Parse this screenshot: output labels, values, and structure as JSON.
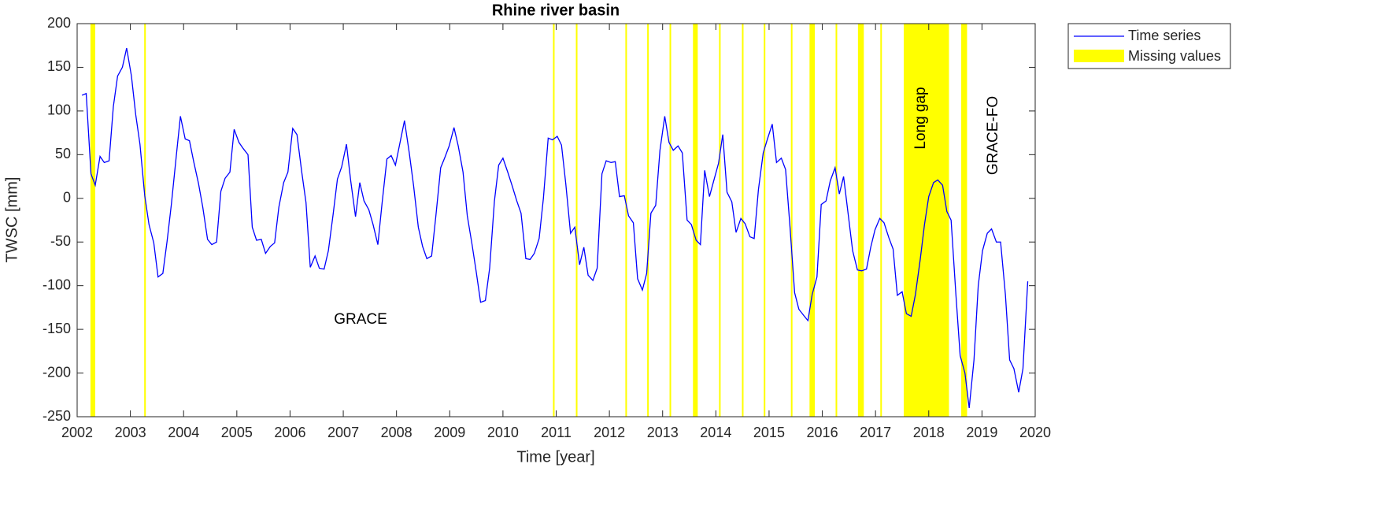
{
  "chart_data": {
    "type": "line",
    "title": "Rhine river basin",
    "x_label": "Time [year]",
    "y_label": "TWSC [mm]",
    "xlim": [
      2002,
      2020
    ],
    "xticks": [
      2002,
      2003,
      2004,
      2005,
      2006,
      2007,
      2008,
      2009,
      2010,
      2011,
      2012,
      2013,
      2014,
      2015,
      2016,
      2017,
      2018,
      2019,
      2020
    ],
    "ylim": [
      -250,
      200
    ],
    "yticks": [
      -250,
      -200,
      -150,
      -100,
      -50,
      0,
      50,
      100,
      150,
      200
    ],
    "legend": "outside-northeast",
    "x": [
      2002.09,
      2002.17,
      2002.26,
      2002.34,
      2002.43,
      2002.51,
      2002.6,
      2002.68,
      2002.76,
      2002.85,
      2002.93,
      2003.02,
      2003.1,
      2003.18,
      2003.27,
      2003.35,
      2003.44,
      2003.52,
      2003.61,
      2003.69,
      2003.77,
      2003.86,
      2003.94,
      2004.03,
      2004.11,
      2004.19,
      2004.28,
      2004.36,
      2004.45,
      2004.53,
      2004.62,
      2004.7,
      2004.78,
      2004.87,
      2004.95,
      2005.04,
      2005.12,
      2005.21,
      2005.29,
      2005.37,
      2005.46,
      2005.54,
      2005.63,
      2005.71,
      2005.79,
      2005.88,
      2005.96,
      2006.05,
      2006.13,
      2006.22,
      2006.3,
      2006.38,
      2006.47,
      2006.55,
      2006.64,
      2006.72,
      2006.81,
      2006.89,
      2006.97,
      2007.06,
      2007.14,
      2007.23,
      2007.31,
      2007.39,
      2007.48,
      2007.56,
      2007.65,
      2007.73,
      2007.82,
      2007.9,
      2007.98,
      2008.07,
      2008.15,
      2008.24,
      2008.32,
      2008.41,
      2008.49,
      2008.57,
      2008.66,
      2008.74,
      2008.83,
      2008.91,
      2008.99,
      2009.08,
      2009.16,
      2009.25,
      2009.33,
      2009.42,
      2009.5,
      2009.58,
      2009.67,
      2009.75,
      2009.84,
      2009.92,
      2010.0,
      2010.09,
      2010.17,
      2010.26,
      2010.34,
      2010.43,
      2010.51,
      2010.59,
      2010.68,
      2010.76,
      2010.85,
      2010.93,
      2011.02,
      2011.1,
      2011.18,
      2011.27,
      2011.35,
      2011.44,
      2011.52,
      2011.6,
      2011.69,
      2011.77,
      2011.86,
      2011.94,
      2012.03,
      2012.11,
      2012.19,
      2012.28,
      2012.36,
      2012.45,
      2012.53,
      2012.62,
      2012.7,
      2012.78,
      2012.87,
      2012.95,
      2013.04,
      2013.12,
      2013.2,
      2013.29,
      2013.37,
      2013.46,
      2013.54,
      2013.63,
      2013.71,
      2013.79,
      2013.88,
      2013.96,
      2014.05,
      2014.13,
      2014.21,
      2014.3,
      2014.38,
      2014.47,
      2014.55,
      2014.64,
      2014.72,
      2014.8,
      2014.89,
      2014.97,
      2015.06,
      2015.14,
      2015.23,
      2015.31,
      2015.39,
      2015.48,
      2015.56,
      2015.65,
      2015.73,
      2015.81,
      2015.9,
      2015.98,
      2016.07,
      2016.15,
      2016.24,
      2016.32,
      2016.4,
      2016.49,
      2016.57,
      2016.66,
      2016.74,
      2016.83,
      2016.91,
      2016.99,
      2017.08,
      2017.16,
      2017.25,
      2017.33,
      2017.41,
      2017.5,
      2017.58,
      2017.67,
      2017.75,
      2017.84,
      2017.92,
      2018.0,
      2018.09,
      2018.17,
      2018.26,
      2018.34,
      2018.42,
      2018.51,
      2018.59,
      2018.68,
      2018.76,
      2018.85,
      2018.93,
      2019.01,
      2019.1,
      2019.18,
      2019.27,
      2019.35,
      2019.44,
      2019.52,
      2019.6,
      2019.69,
      2019.77,
      2019.86
    ],
    "series": [
      {
        "name": "Time series",
        "color": "#0000ff",
        "values": [
          118,
          120,
          28,
          15,
          48,
          41,
          43,
          105,
          140,
          150,
          172,
          140,
          96,
          62,
          3,
          -30,
          -51,
          -90,
          -86,
          -49,
          -7,
          47,
          94,
          68,
          66,
          42,
          17,
          -10,
          -47,
          -53,
          -50,
          8,
          23,
          30,
          79,
          64,
          57,
          50,
          -33,
          -48,
          -47,
          -63,
          -55,
          -51,
          -10,
          18,
          30,
          80,
          73,
          30,
          -5,
          -79,
          -66,
          -80,
          -81,
          -60,
          -18,
          22,
          36,
          62,
          20,
          -21,
          18,
          -3,
          -13,
          -30,
          -53,
          -5,
          45,
          49,
          38,
          65,
          89,
          52,
          15,
          -33,
          -55,
          -69,
          -66,
          -20,
          35,
          47,
          60,
          81,
          60,
          30,
          -20,
          -53,
          -85,
          -119,
          -117,
          -80,
          -3,
          38,
          46,
          30,
          15,
          -3,
          -17,
          -69,
          -70,
          -63,
          -46,
          0,
          69,
          67,
          71,
          61,
          17,
          -40,
          -33,
          -76,
          -56,
          -88,
          -94,
          -80,
          28,
          43,
          41,
          42,
          2,
          3,
          -20,
          -28,
          -92,
          -105,
          -86,
          -17,
          -8,
          55,
          94,
          64,
          55,
          60,
          52,
          -25,
          -30,
          -48,
          -53,
          32,
          2,
          20,
          40,
          73,
          7,
          -4,
          -39,
          -23,
          -29,
          -44,
          -46,
          10,
          52,
          68,
          85,
          41,
          46,
          33,
          -30,
          -108,
          -127,
          -134,
          -140,
          -110,
          -90,
          -7,
          -3,
          20,
          35,
          5,
          25,
          -20,
          -60,
          -82,
          -83,
          -81,
          -56,
          -36,
          -23,
          -28,
          -45,
          -58,
          -111,
          -107,
          -132,
          -135,
          -110,
          -70,
          -30,
          2,
          18,
          21,
          15,
          -15,
          -25,
          -110,
          -180,
          -200,
          -240,
          -185,
          -100,
          -60,
          -40,
          -35,
          -50,
          -50,
          -110,
          -185,
          -195,
          -222,
          -195,
          -95
        ]
      }
    ],
    "missing_values": {
      "name": "Missing values",
      "color": "#ffff00",
      "ranges": [
        [
          2002.25,
          2002.34
        ],
        [
          2003.26,
          2003.29
        ],
        [
          2010.94,
          2010.97
        ],
        [
          2011.37,
          2011.4
        ],
        [
          2012.3,
          2012.33
        ],
        [
          2012.71,
          2012.74
        ],
        [
          2013.13,
          2013.16
        ],
        [
          2013.57,
          2013.66
        ],
        [
          2014.06,
          2014.09
        ],
        [
          2014.49,
          2014.52
        ],
        [
          2014.9,
          2014.93
        ],
        [
          2015.41,
          2015.44
        ],
        [
          2015.76,
          2015.86
        ],
        [
          2016.25,
          2016.28
        ],
        [
          2016.67,
          2016.78
        ],
        [
          2017.09,
          2017.12
        ],
        [
          2017.53,
          2018.38
        ],
        [
          2018.61,
          2018.72
        ]
      ]
    },
    "annotations": [
      "GRACE",
      "Long gap",
      "GRACE-FO"
    ]
  }
}
